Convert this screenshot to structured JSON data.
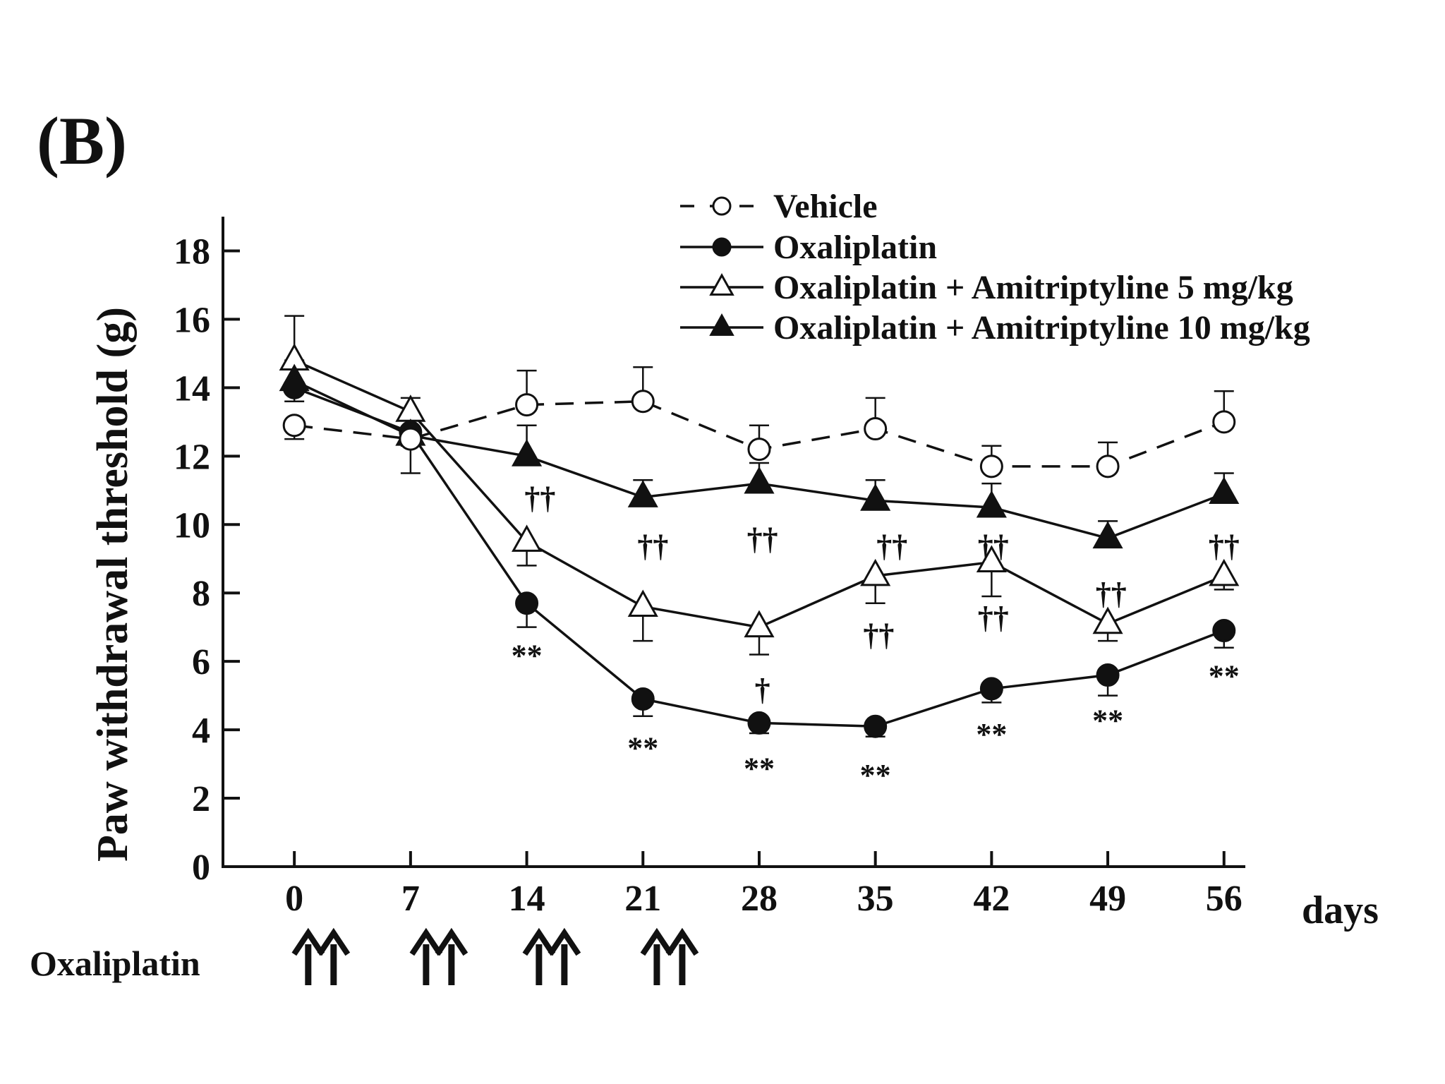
{
  "panel_label": "(B)",
  "chart_data": {
    "type": "line",
    "ylabel": "Paw withdrawal threshold (g)",
    "xlabel": "days",
    "x": [
      0,
      7,
      14,
      21,
      28,
      35,
      42,
      49,
      56
    ],
    "x_tick_labels": [
      "0",
      "7",
      "14",
      "21",
      "28",
      "35",
      "42",
      "49",
      "56"
    ],
    "ylim": [
      0,
      19
    ],
    "y_ticks": [
      0,
      2,
      4,
      6,
      8,
      10,
      12,
      14,
      16,
      18
    ],
    "y_tick_labels": [
      "0",
      "2",
      "4",
      "6",
      "8",
      "10",
      "12",
      "14",
      "16",
      "18"
    ],
    "grid": false,
    "legend_position": "top-right",
    "series": [
      {
        "name": "Vehicle",
        "marker": "open-circle",
        "line": "dashed",
        "values": [
          12.9,
          12.5,
          13.5,
          13.6,
          12.2,
          12.8,
          11.7,
          11.7,
          13.0
        ],
        "err_dir": [
          "down",
          "down",
          "up",
          "up",
          "up",
          "up",
          "up",
          "up",
          "up"
        ],
        "err": [
          0.4,
          1.0,
          1.0,
          1.0,
          0.7,
          0.9,
          0.6,
          0.7,
          0.9
        ]
      },
      {
        "name": "Oxaliplatin",
        "marker": "filled-circle",
        "line": "solid",
        "values": [
          14.0,
          12.7,
          7.7,
          4.9,
          4.2,
          4.1,
          5.2,
          5.6,
          6.9
        ],
        "err_dir": [
          "down",
          "down",
          "down",
          "down",
          "down",
          "down",
          "down",
          "down",
          "down"
        ],
        "err": [
          0.4,
          0.4,
          0.7,
          0.5,
          0.3,
          0.3,
          0.4,
          0.6,
          0.5
        ]
      },
      {
        "name": "Oxaliplatin + Amitriptyline 5 mg/kg",
        "marker": "open-triangle",
        "line": "solid",
        "values": [
          14.8,
          13.3,
          9.5,
          7.6,
          7.0,
          8.5,
          8.9,
          7.1,
          8.5
        ],
        "err_dir": [
          "up",
          "up",
          "down",
          "down",
          "down",
          "down",
          "down",
          "down",
          "down"
        ],
        "err": [
          1.3,
          0.4,
          0.7,
          1.0,
          0.8,
          0.8,
          1.0,
          0.5,
          0.4
        ]
      },
      {
        "name": "Oxaliplatin + Amitriptyline 10 mg/kg",
        "marker": "filled-triangle",
        "line": "solid",
        "values": [
          14.2,
          12.6,
          12.0,
          10.8,
          11.2,
          10.7,
          10.5,
          9.6,
          10.9
        ],
        "err_dir": [
          "up",
          "up",
          "up",
          "up",
          "up",
          "up",
          "up",
          "up",
          "up"
        ],
        "err": [
          0.6,
          0.5,
          0.9,
          0.5,
          0.6,
          0.6,
          0.7,
          0.5,
          0.6
        ]
      }
    ],
    "annotations": [
      {
        "x": 14,
        "y": 6.2,
        "text": "**"
      },
      {
        "x": 21,
        "y": 3.5,
        "text": "**"
      },
      {
        "x": 28,
        "y": 2.9,
        "text": "**"
      },
      {
        "x": 35,
        "y": 2.7,
        "text": "**"
      },
      {
        "x": 42,
        "y": 3.9,
        "text": "**"
      },
      {
        "x": 49,
        "y": 4.3,
        "text": "**"
      },
      {
        "x": 56,
        "y": 5.6,
        "text": "**"
      },
      {
        "x": 14.8,
        "y": 10.8,
        "text": "††"
      },
      {
        "x": 21.6,
        "y": 9.4,
        "text": "††"
      },
      {
        "x": 28.2,
        "y": 9.6,
        "text": "††"
      },
      {
        "x": 36.0,
        "y": 9.4,
        "text": "††"
      },
      {
        "x": 42.1,
        "y": 9.4,
        "text": "††"
      },
      {
        "x": 49.2,
        "y": 8.0,
        "text": "††"
      },
      {
        "x": 56.0,
        "y": 9.4,
        "text": "††"
      },
      {
        "x": 35.2,
        "y": 6.8,
        "text": "††"
      },
      {
        "x": 42.1,
        "y": 7.3,
        "text": "††"
      },
      {
        "x": 28.2,
        "y": 5.2,
        "text": "†"
      }
    ],
    "treatment_label": "Oxaliplatin",
    "treatment_days": [
      1.6,
      8.7,
      15.5,
      22.6
    ],
    "arrows_per_day": 2
  }
}
